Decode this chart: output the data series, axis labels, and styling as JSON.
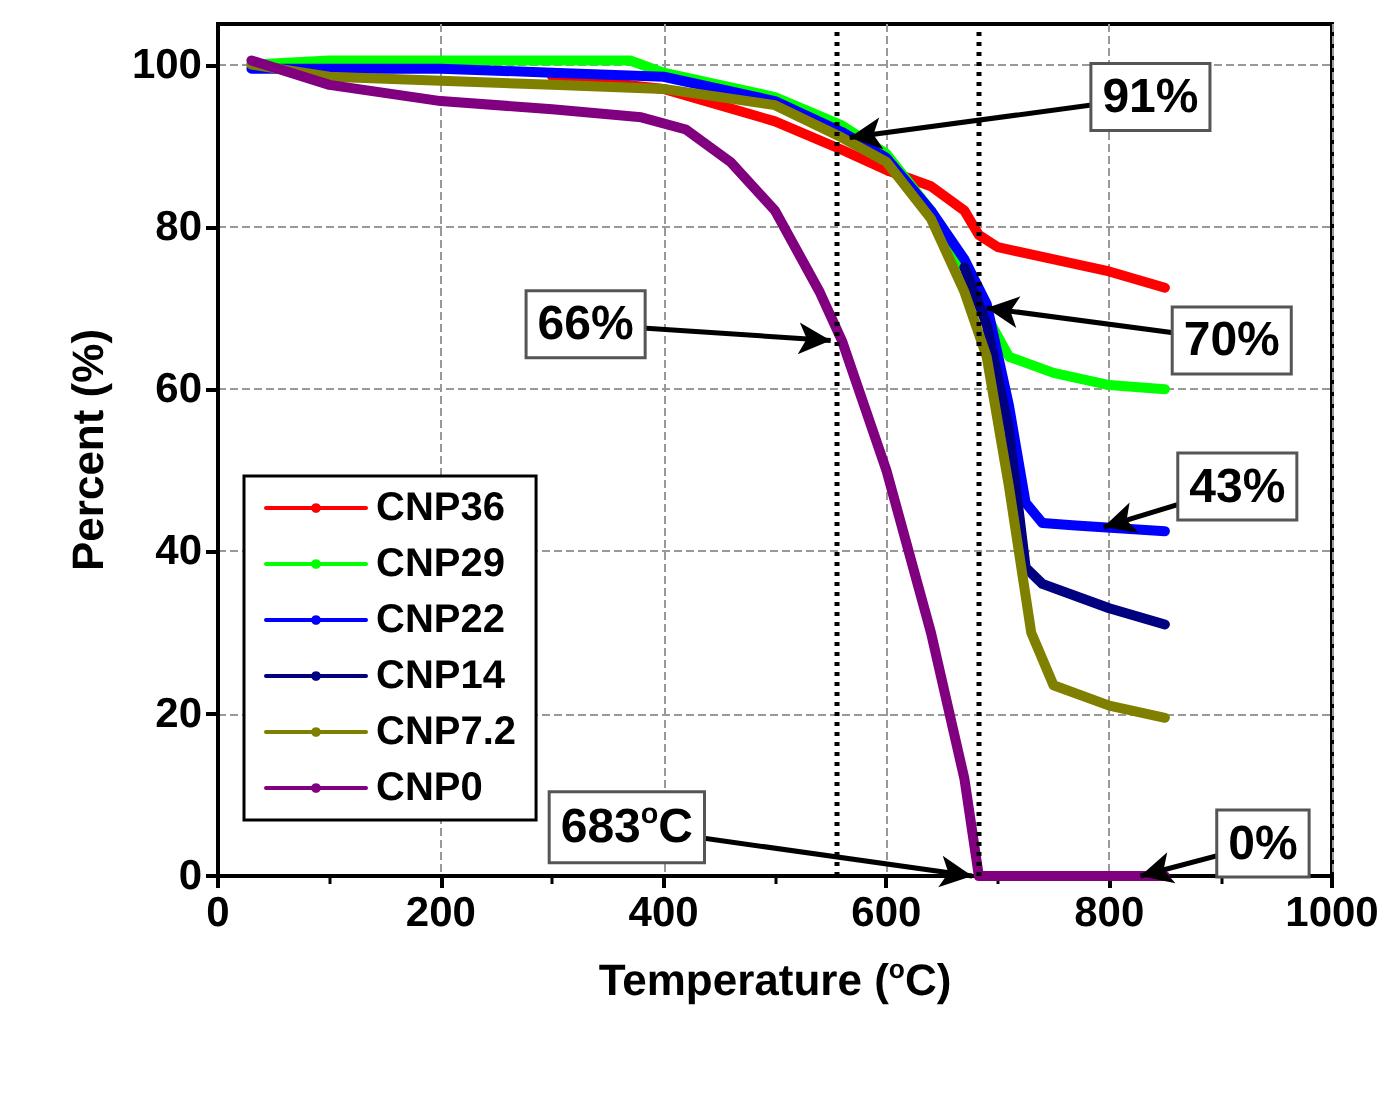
{
  "chart_data": {
    "type": "line",
    "xlabel": "Temperature ($^{o}$C)",
    "ylabel": "Percent (%)",
    "xlim": [
      0,
      1000
    ],
    "xticks": [
      0,
      200,
      400,
      600,
      800,
      1000
    ],
    "ylim": [
      0,
      105
    ],
    "yticks": [
      0,
      20,
      40,
      60,
      80,
      100
    ],
    "grid": true,
    "legend": "bottom left",
    "line_style": "solid",
    "series": [
      {
        "name": "CNP36",
        "color": "#ff0000",
        "x": [
          300,
          400,
          500,
          560,
          600,
          640,
          670,
          683,
          700,
          800,
          850
        ],
        "values": [
          98.5,
          97,
          93,
          89.5,
          87,
          85,
          82,
          79,
          77.5,
          74.5,
          72.5
        ]
      },
      {
        "name": "CNP29",
        "color": "#00ff00",
        "x": [
          30,
          100,
          200,
          300,
          370,
          400,
          500,
          560,
          600,
          640,
          670,
          690,
          710,
          750,
          800,
          850
        ],
        "values": [
          100,
          100.5,
          100.5,
          100.5,
          100.5,
          99,
          96,
          92.5,
          89,
          82,
          75,
          69,
          64,
          62,
          60.5,
          60
        ]
      },
      {
        "name": "CNP22",
        "color": "#0000ff",
        "x": [
          30,
          100,
          200,
          300,
          400,
          500,
          560,
          600,
          640,
          670,
          690,
          710,
          725,
          740,
          770,
          850
        ],
        "values": [
          99.5,
          99.5,
          99.5,
          99,
          98.5,
          95.5,
          91.7,
          88.5,
          82,
          76,
          70.5,
          58,
          46,
          43.5,
          43.2,
          42.5
        ]
      },
      {
        "name": "CNP14",
        "color": "#000080",
        "x": [
          670,
          690,
          710,
          725,
          740,
          800,
          850
        ],
        "values": [
          75,
          68,
          55,
          38,
          36,
          33,
          31
        ]
      },
      {
        "name": "CNP7.2",
        "color": "#808000",
        "x": [
          30,
          100,
          200,
          300,
          400,
          500,
          560,
          600,
          640,
          670,
          690,
          710,
          730,
          750,
          800,
          850
        ],
        "values": [
          100,
          98.5,
          98,
          97.5,
          97,
          95,
          91,
          88,
          81,
          72,
          64,
          48,
          30,
          23.5,
          21,
          19.5
        ]
      },
      {
        "name": "CNP0",
        "color": "#800080",
        "x": [
          30,
          100,
          200,
          300,
          380,
          420,
          460,
          500,
          540,
          560,
          600,
          640,
          670,
          683,
          850
        ],
        "values": [
          100.5,
          97.5,
          95.5,
          94.5,
          93.5,
          92,
          88,
          82,
          72,
          66,
          50,
          30,
          12,
          0,
          0
        ]
      }
    ],
    "ref_lines": [
      {
        "axis": "x",
        "value": 555,
        "line_style": "dotted",
        "color": "#000000"
      },
      {
        "axis": "x",
        "value": 683,
        "line_style": "dotted",
        "color": "#000000"
      }
    ],
    "annotations": [
      {
        "text": "91%",
        "x": 567,
        "y": 91
      },
      {
        "text": "66%",
        "x": 550,
        "y": 66
      },
      {
        "text": "70%",
        "x": 690,
        "y": 70
      },
      {
        "text": "43%",
        "x": 795,
        "y": 43
      },
      {
        "text": "683$^{o}$C",
        "x": 677,
        "y": 0
      },
      {
        "text": "0%",
        "x": 828,
        "y": 0
      }
    ]
  }
}
